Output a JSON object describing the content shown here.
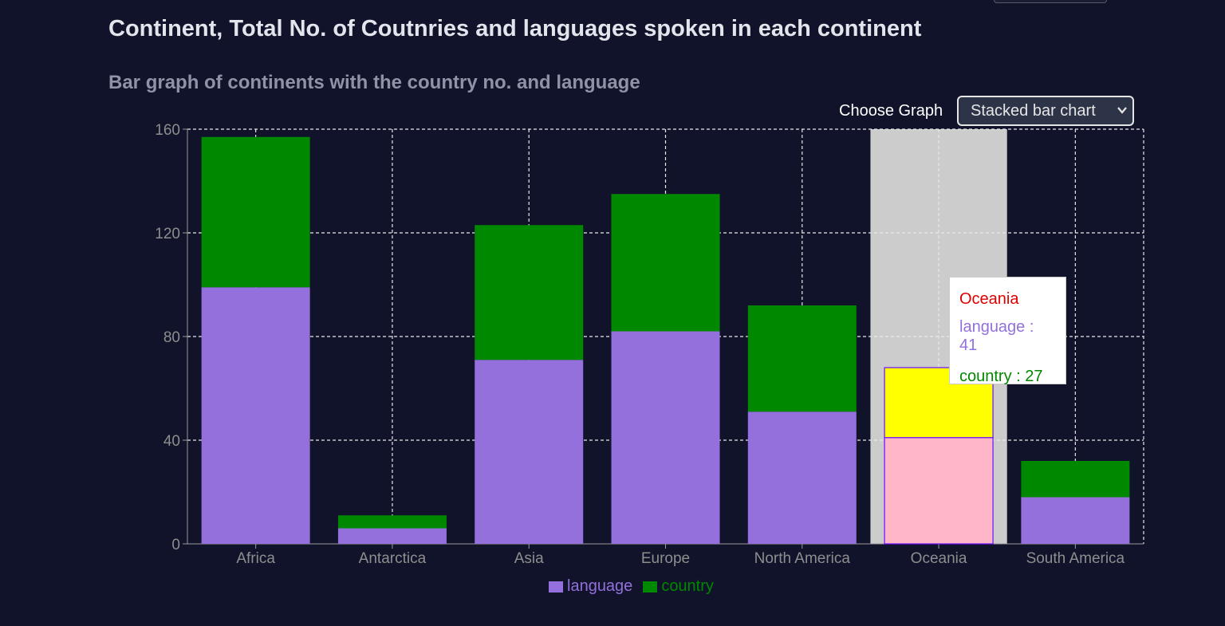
{
  "page": {
    "title": "Continent, Total No. of Coutnries and languages spoken in each continent",
    "subtitle": "Bar graph of continents with the country no. and language"
  },
  "controls": {
    "choose_label": "Choose Graph",
    "graph_select_value": "Stacked bar chart"
  },
  "colors": {
    "background": "#10132a",
    "language": "#9370db",
    "country": "#008800",
    "highlight_band": "#cccccc",
    "active_language": "#ffb6c8",
    "active_country": "#ffff00",
    "active_stroke": "#6a0dff",
    "tooltip_title": "#e00000"
  },
  "chart_data": {
    "type": "bar",
    "stacked": true,
    "categories": [
      "Africa",
      "Antarctica",
      "Asia",
      "Europe",
      "North America",
      "Oceania",
      "South America"
    ],
    "series": [
      {
        "name": "language",
        "values": [
          99,
          6,
          71,
          82,
          51,
          41,
          18
        ]
      },
      {
        "name": "country",
        "values": [
          58,
          5,
          52,
          53,
          41,
          27,
          14
        ]
      }
    ],
    "ylim": [
      0,
      160
    ],
    "yticks": [
      0,
      40,
      80,
      120,
      160
    ],
    "grid": true,
    "legend_position": "bottom",
    "active_category": "Oceania"
  },
  "tooltip": {
    "title": "Oceania",
    "rows": [
      {
        "label": "language : 41"
      },
      {
        "label": "country : 27"
      }
    ]
  },
  "legend": {
    "items": [
      {
        "label": "language"
      },
      {
        "label": "country"
      }
    ]
  }
}
